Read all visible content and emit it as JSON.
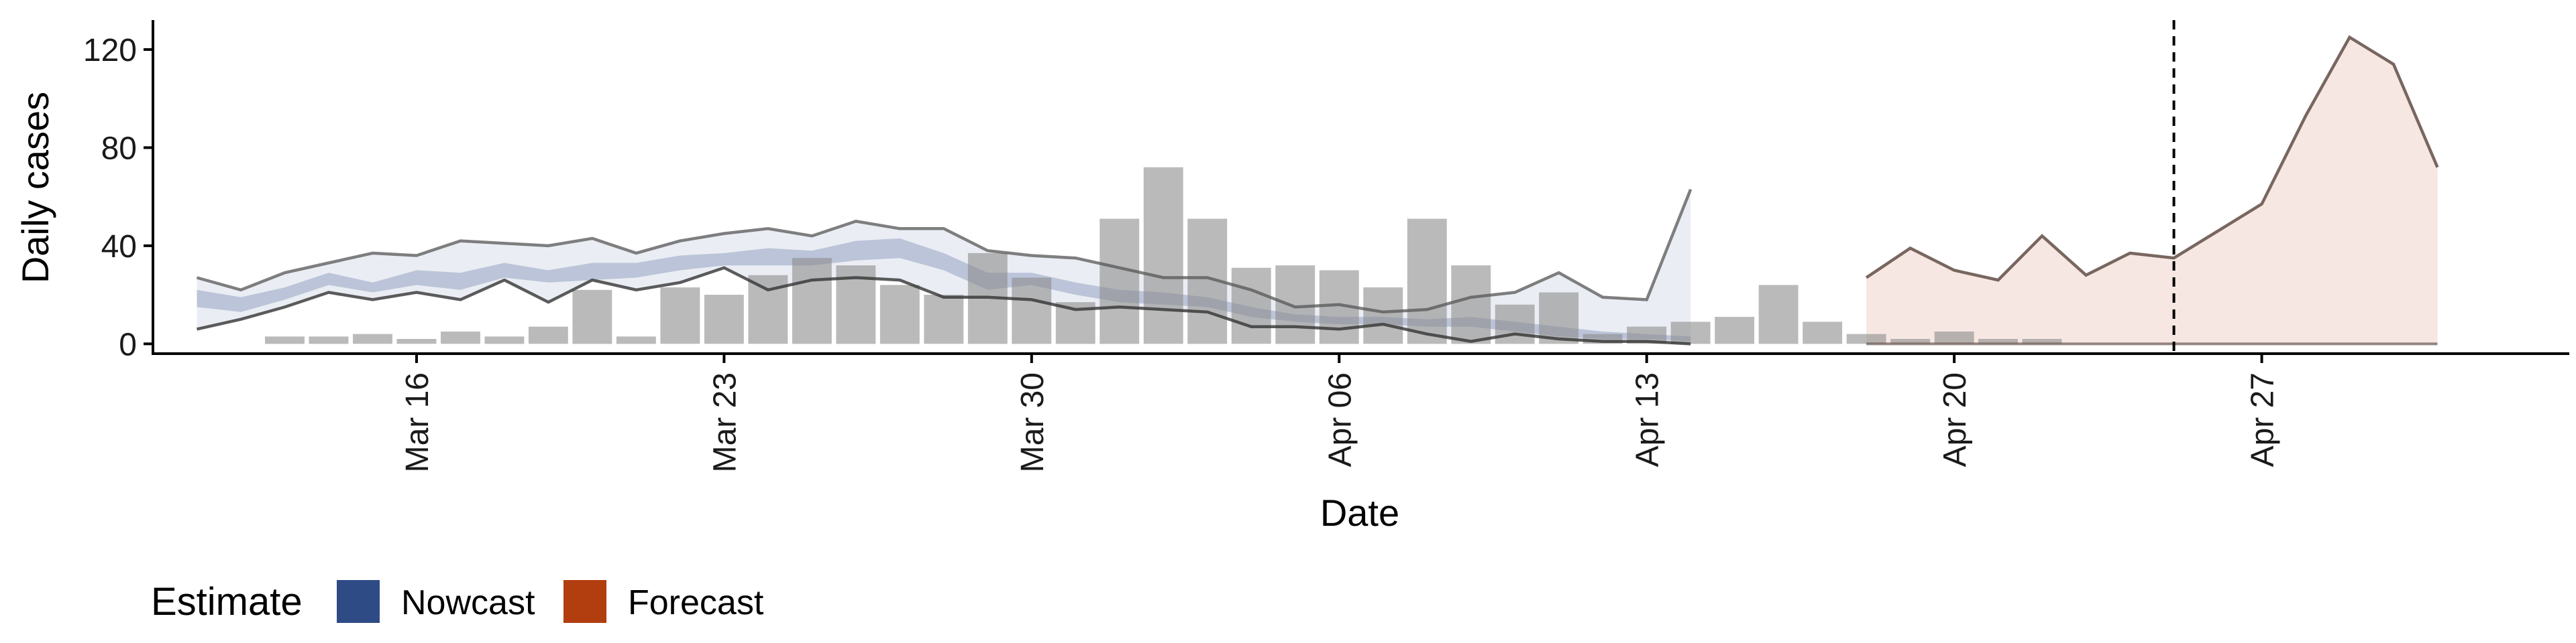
{
  "chart_data": {
    "type": "bar",
    "xlabel": "Date",
    "ylabel": "Daily cases",
    "x_ticks": [
      "Mar 16",
      "Mar 23",
      "Mar 30",
      "Apr 06",
      "Apr 13",
      "Apr 20",
      "Apr 27"
    ],
    "x_tick_dates": [
      "2020-03-16",
      "2020-03-23",
      "2020-03-30",
      "2020-04-06",
      "2020-04-13",
      "2020-04-20",
      "2020-04-27"
    ],
    "y_ticks": [
      0,
      40,
      80,
      120
    ],
    "ylim": [
      -4,
      132
    ],
    "xlim": [
      "2020-03-10",
      "2020-05-04"
    ],
    "bars": {
      "dates": [
        "2020-03-13",
        "2020-03-14",
        "2020-03-15",
        "2020-03-16",
        "2020-03-17",
        "2020-03-18",
        "2020-03-19",
        "2020-03-20",
        "2020-03-21",
        "2020-03-22",
        "2020-03-23",
        "2020-03-24",
        "2020-03-25",
        "2020-03-26",
        "2020-03-27",
        "2020-03-28",
        "2020-03-29",
        "2020-03-30",
        "2020-03-31",
        "2020-04-01",
        "2020-04-02",
        "2020-04-03",
        "2020-04-04",
        "2020-04-05",
        "2020-04-06",
        "2020-04-07",
        "2020-04-08",
        "2020-04-09",
        "2020-04-10",
        "2020-04-11",
        "2020-04-12",
        "2020-04-13",
        "2020-04-14",
        "2020-04-15",
        "2020-04-16",
        "2020-04-17",
        "2020-04-18",
        "2020-04-19",
        "2020-04-20",
        "2020-04-21",
        "2020-04-22",
        "2020-04-23",
        "2020-04-24"
      ],
      "values": [
        3,
        3,
        4,
        2,
        5,
        3,
        7,
        22,
        3,
        23,
        20,
        28,
        35,
        32,
        24,
        20,
        37,
        27,
        17,
        51,
        72,
        51,
        31,
        32,
        30,
        23,
        51,
        32,
        16,
        21,
        4,
        7,
        9,
        11,
        24,
        9,
        4,
        2,
        5,
        2,
        2,
        0,
        0
      ]
    },
    "series": [
      {
        "name": "Nowcast",
        "color": "#2f4b86",
        "dates": [
          "2020-03-11",
          "2020-03-12",
          "2020-03-13",
          "2020-03-14",
          "2020-03-15",
          "2020-03-16",
          "2020-03-17",
          "2020-03-18",
          "2020-03-19",
          "2020-03-20",
          "2020-03-21",
          "2020-03-22",
          "2020-03-23",
          "2020-03-24",
          "2020-03-25",
          "2020-03-26",
          "2020-03-27",
          "2020-03-28",
          "2020-03-29",
          "2020-03-30",
          "2020-03-31",
          "2020-04-01",
          "2020-04-02",
          "2020-04-03",
          "2020-04-04",
          "2020-04-05",
          "2020-04-06",
          "2020-04-07",
          "2020-04-08",
          "2020-04-09",
          "2020-04-10",
          "2020-04-11",
          "2020-04-12",
          "2020-04-13",
          "2020-04-14",
          "2020-04-15",
          "2020-04-16"
        ],
        "outer_upper": [
          27,
          22,
          29,
          33,
          37,
          36,
          42,
          41,
          40,
          43,
          37,
          42,
          45,
          47,
          44,
          50,
          47,
          47,
          38,
          36,
          35,
          31,
          27,
          27,
          22,
          15,
          16,
          13,
          14,
          19,
          21,
          29,
          19,
          18,
          63,
          null,
          null
        ],
        "outer_lower": [
          6,
          10,
          15,
          21,
          18,
          21,
          18,
          26,
          17,
          26,
          22,
          25,
          31,
          22,
          26,
          27,
          26,
          19,
          19,
          18,
          14,
          15,
          14,
          13,
          7,
          7,
          6,
          8,
          4,
          1,
          4,
          2,
          1,
          1,
          0,
          null,
          null
        ],
        "inner_upper": [
          22,
          19,
          23,
          29,
          25,
          30,
          29,
          33,
          30,
          33,
          33,
          36,
          37,
          39,
          38,
          42,
          43,
          37,
          29,
          29,
          25,
          22,
          21,
          19,
          15,
          12,
          11,
          11,
          10,
          11,
          9,
          7,
          5,
          4,
          3,
          null,
          null
        ],
        "inner_lower": [
          15,
          13,
          18,
          24,
          21,
          24,
          22,
          27,
          25,
          26,
          27,
          30,
          32,
          32,
          32,
          34,
          35,
          30,
          22,
          24,
          20,
          17,
          16,
          15,
          11,
          9,
          8,
          8,
          7,
          7,
          5,
          3,
          2,
          2,
          1,
          null,
          null
        ]
      },
      {
        "name": "Forecast",
        "color": "#b23d0f",
        "dates": [
          "2020-04-18",
          "2020-04-19",
          "2020-04-20",
          "2020-04-21",
          "2020-04-22",
          "2020-04-23",
          "2020-04-24",
          "2020-04-25",
          "2020-04-26",
          "2020-04-27",
          "2020-04-28",
          "2020-04-29",
          "2020-04-30",
          "2020-05-01",
          "2020-05-02"
        ],
        "outer_upper": [
          27,
          39,
          30,
          26,
          44,
          28,
          37,
          35,
          46,
          57,
          93,
          125,
          114,
          72,
          null
        ],
        "outer_lower": [
          0,
          0,
          0,
          0,
          0,
          0,
          0,
          0,
          0,
          0,
          0,
          0,
          0,
          0,
          null
        ]
      }
    ],
    "dashed_vline_date": "2020-04-25",
    "legend": {
      "title": "Estimate",
      "position": "bottom-left",
      "items": [
        {
          "label": "Nowcast",
          "color": "#2f4b86"
        },
        {
          "label": "Forecast",
          "color": "#b23d0f"
        }
      ]
    },
    "grid": false
  }
}
